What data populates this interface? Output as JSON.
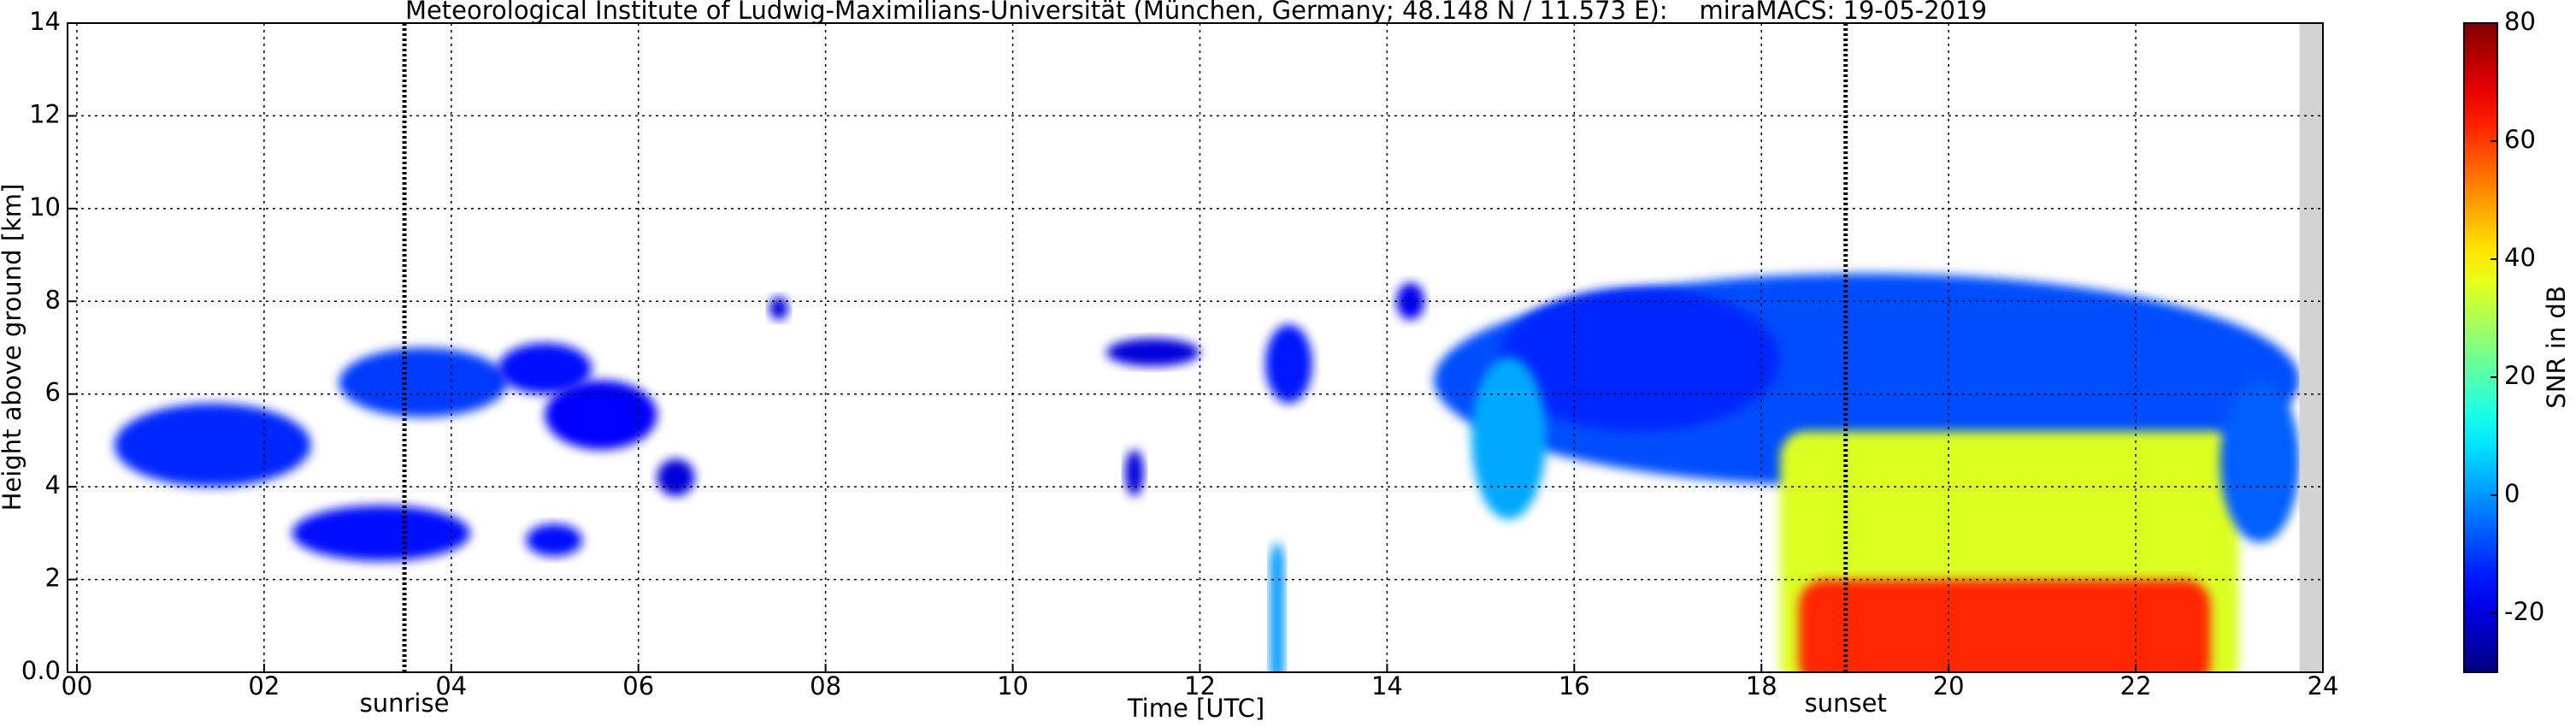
{
  "chart_data": {
    "type": "heatmap",
    "title": "Meteorological Institute of Ludwig-Maximilians-Universität (München, Germany; 48.148 N / 11.573 E):    miraMACS: 19-05-2019",
    "x_label": "Time [UTC]",
    "y_label": "Height above ground [km]",
    "colorbar_label": "SNR in dB",
    "xlim": [
      -0.1,
      24
    ],
    "ylim": [
      0,
      14
    ],
    "clim": [
      -30,
      80
    ],
    "xticks": [
      {
        "value": 0,
        "label": "00"
      },
      {
        "value": 2,
        "label": "02"
      },
      {
        "value": 4,
        "label": "04"
      },
      {
        "value": 6,
        "label": "06"
      },
      {
        "value": 8,
        "label": "08"
      },
      {
        "value": 10,
        "label": "10"
      },
      {
        "value": 12,
        "label": "12"
      },
      {
        "value": 14,
        "label": "14"
      },
      {
        "value": 16,
        "label": "16"
      },
      {
        "value": 18,
        "label": "18"
      },
      {
        "value": 20,
        "label": "20"
      },
      {
        "value": 22,
        "label": "22"
      },
      {
        "value": 24,
        "label": "24"
      }
    ],
    "yticks": [
      {
        "value": 0,
        "label": "0.0"
      },
      2,
      4,
      6,
      8,
      10,
      12,
      14
    ],
    "cticks": [
      -20,
      0,
      20,
      40,
      60,
      80
    ],
    "grid": true,
    "no_data": [
      23.75,
      24
    ],
    "events": [
      {
        "label": "sunrise",
        "time": 3.5
      },
      {
        "label": "sunset",
        "time": 18.9
      }
    ],
    "echoes": [
      {
        "time": [
          14.5,
          23.75
        ],
        "height": [
          4.0,
          8.6
        ],
        "snr": -8
      },
      {
        "time": [
          18.2,
          23.1
        ],
        "height": [
          0,
          5.2
        ],
        "snr": 35
      },
      {
        "time": [
          18.4,
          22.8
        ],
        "height": [
          0,
          2.0
        ],
        "snr": 62
      },
      {
        "time": [
          15.2,
          18.2
        ],
        "height": [
          5.2,
          8.3
        ],
        "snr": -12
      },
      {
        "time": [
          22.9,
          23.75
        ],
        "height": [
          2.8,
          6.3
        ],
        "snr": -6
      },
      {
        "time": [
          14.9,
          15.7
        ],
        "height": [
          3.3,
          6.8
        ],
        "snr": 2
      },
      {
        "time": [
          0.4,
          2.5
        ],
        "height": [
          4.0,
          5.8
        ],
        "snr": -12
      },
      {
        "time": [
          2.3,
          4.2
        ],
        "height": [
          2.4,
          3.6
        ],
        "snr": -15
      },
      {
        "time": [
          2.8,
          4.6
        ],
        "height": [
          5.5,
          7.0
        ],
        "snr": -10
      },
      {
        "time": [
          4.5,
          5.5
        ],
        "height": [
          6.0,
          7.1
        ],
        "snr": -15
      },
      {
        "time": [
          5.0,
          6.2
        ],
        "height": [
          4.8,
          6.3
        ],
        "snr": -16
      },
      {
        "time": [
          6.2,
          6.6
        ],
        "height": [
          3.8,
          4.6
        ],
        "snr": -20
      },
      {
        "time": [
          4.8,
          5.4
        ],
        "height": [
          2.5,
          3.2
        ],
        "snr": -15
      },
      {
        "time": [
          7.4,
          7.6
        ],
        "height": [
          7.6,
          8.1
        ],
        "snr": -20
      },
      {
        "time": [
          11.0,
          12.0
        ],
        "height": [
          6.6,
          7.2
        ],
        "snr": -20
      },
      {
        "time": [
          11.2,
          11.4
        ],
        "height": [
          3.8,
          4.8
        ],
        "snr": -20
      },
      {
        "time": [
          12.7,
          13.2
        ],
        "height": [
          5.8,
          7.5
        ],
        "snr": -14
      },
      {
        "time": [
          14.1,
          14.4
        ],
        "height": [
          7.6,
          8.4
        ],
        "snr": -18
      },
      {
        "time": [
          12.75,
          12.9
        ],
        "height": [
          0,
          2.8
        ],
        "snr": 0
      }
    ]
  }
}
